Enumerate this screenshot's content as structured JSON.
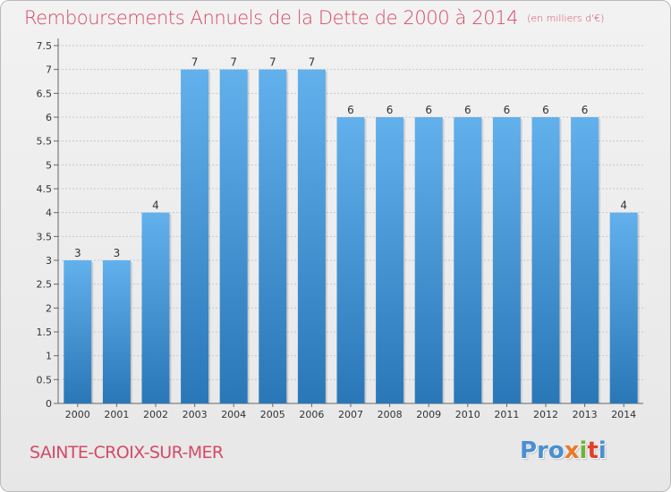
{
  "header": {
    "title": "Remboursements Annuels de la Dette de 2000 à 2014",
    "unit": "(en milliers d'€)"
  },
  "footer": {
    "place": "SAINTE-CROIX-SUR-MER",
    "logo": [
      "Pro",
      "x",
      "i",
      "t",
      "i",
      ""
    ]
  },
  "colors": {
    "title": "#d44a67",
    "bar_top": "#62b0ec",
    "bar_bottom": "#2a77b8",
    "grid": "#c8c8c8",
    "axis": "#666666"
  },
  "chart_data": {
    "type": "bar",
    "categories": [
      "2000",
      "2001",
      "2002",
      "2003",
      "2004",
      "2005",
      "2006",
      "2007",
      "2008",
      "2009",
      "2010",
      "2011",
      "2012",
      "2013",
      "2014"
    ],
    "values": [
      3,
      3,
      4,
      7,
      7,
      7,
      7,
      6,
      6,
      6,
      6,
      6,
      6,
      6,
      4
    ],
    "yticks": [
      "0",
      "0.5",
      "1",
      "1.5",
      "2",
      "2.5",
      "3",
      "3.5",
      "4",
      "4.5",
      "5",
      "5.5",
      "6",
      "6.5",
      "7",
      "7.5"
    ],
    "ylim": [
      0,
      7.5
    ],
    "grid": true,
    "xlabel": "",
    "ylabel": ""
  }
}
